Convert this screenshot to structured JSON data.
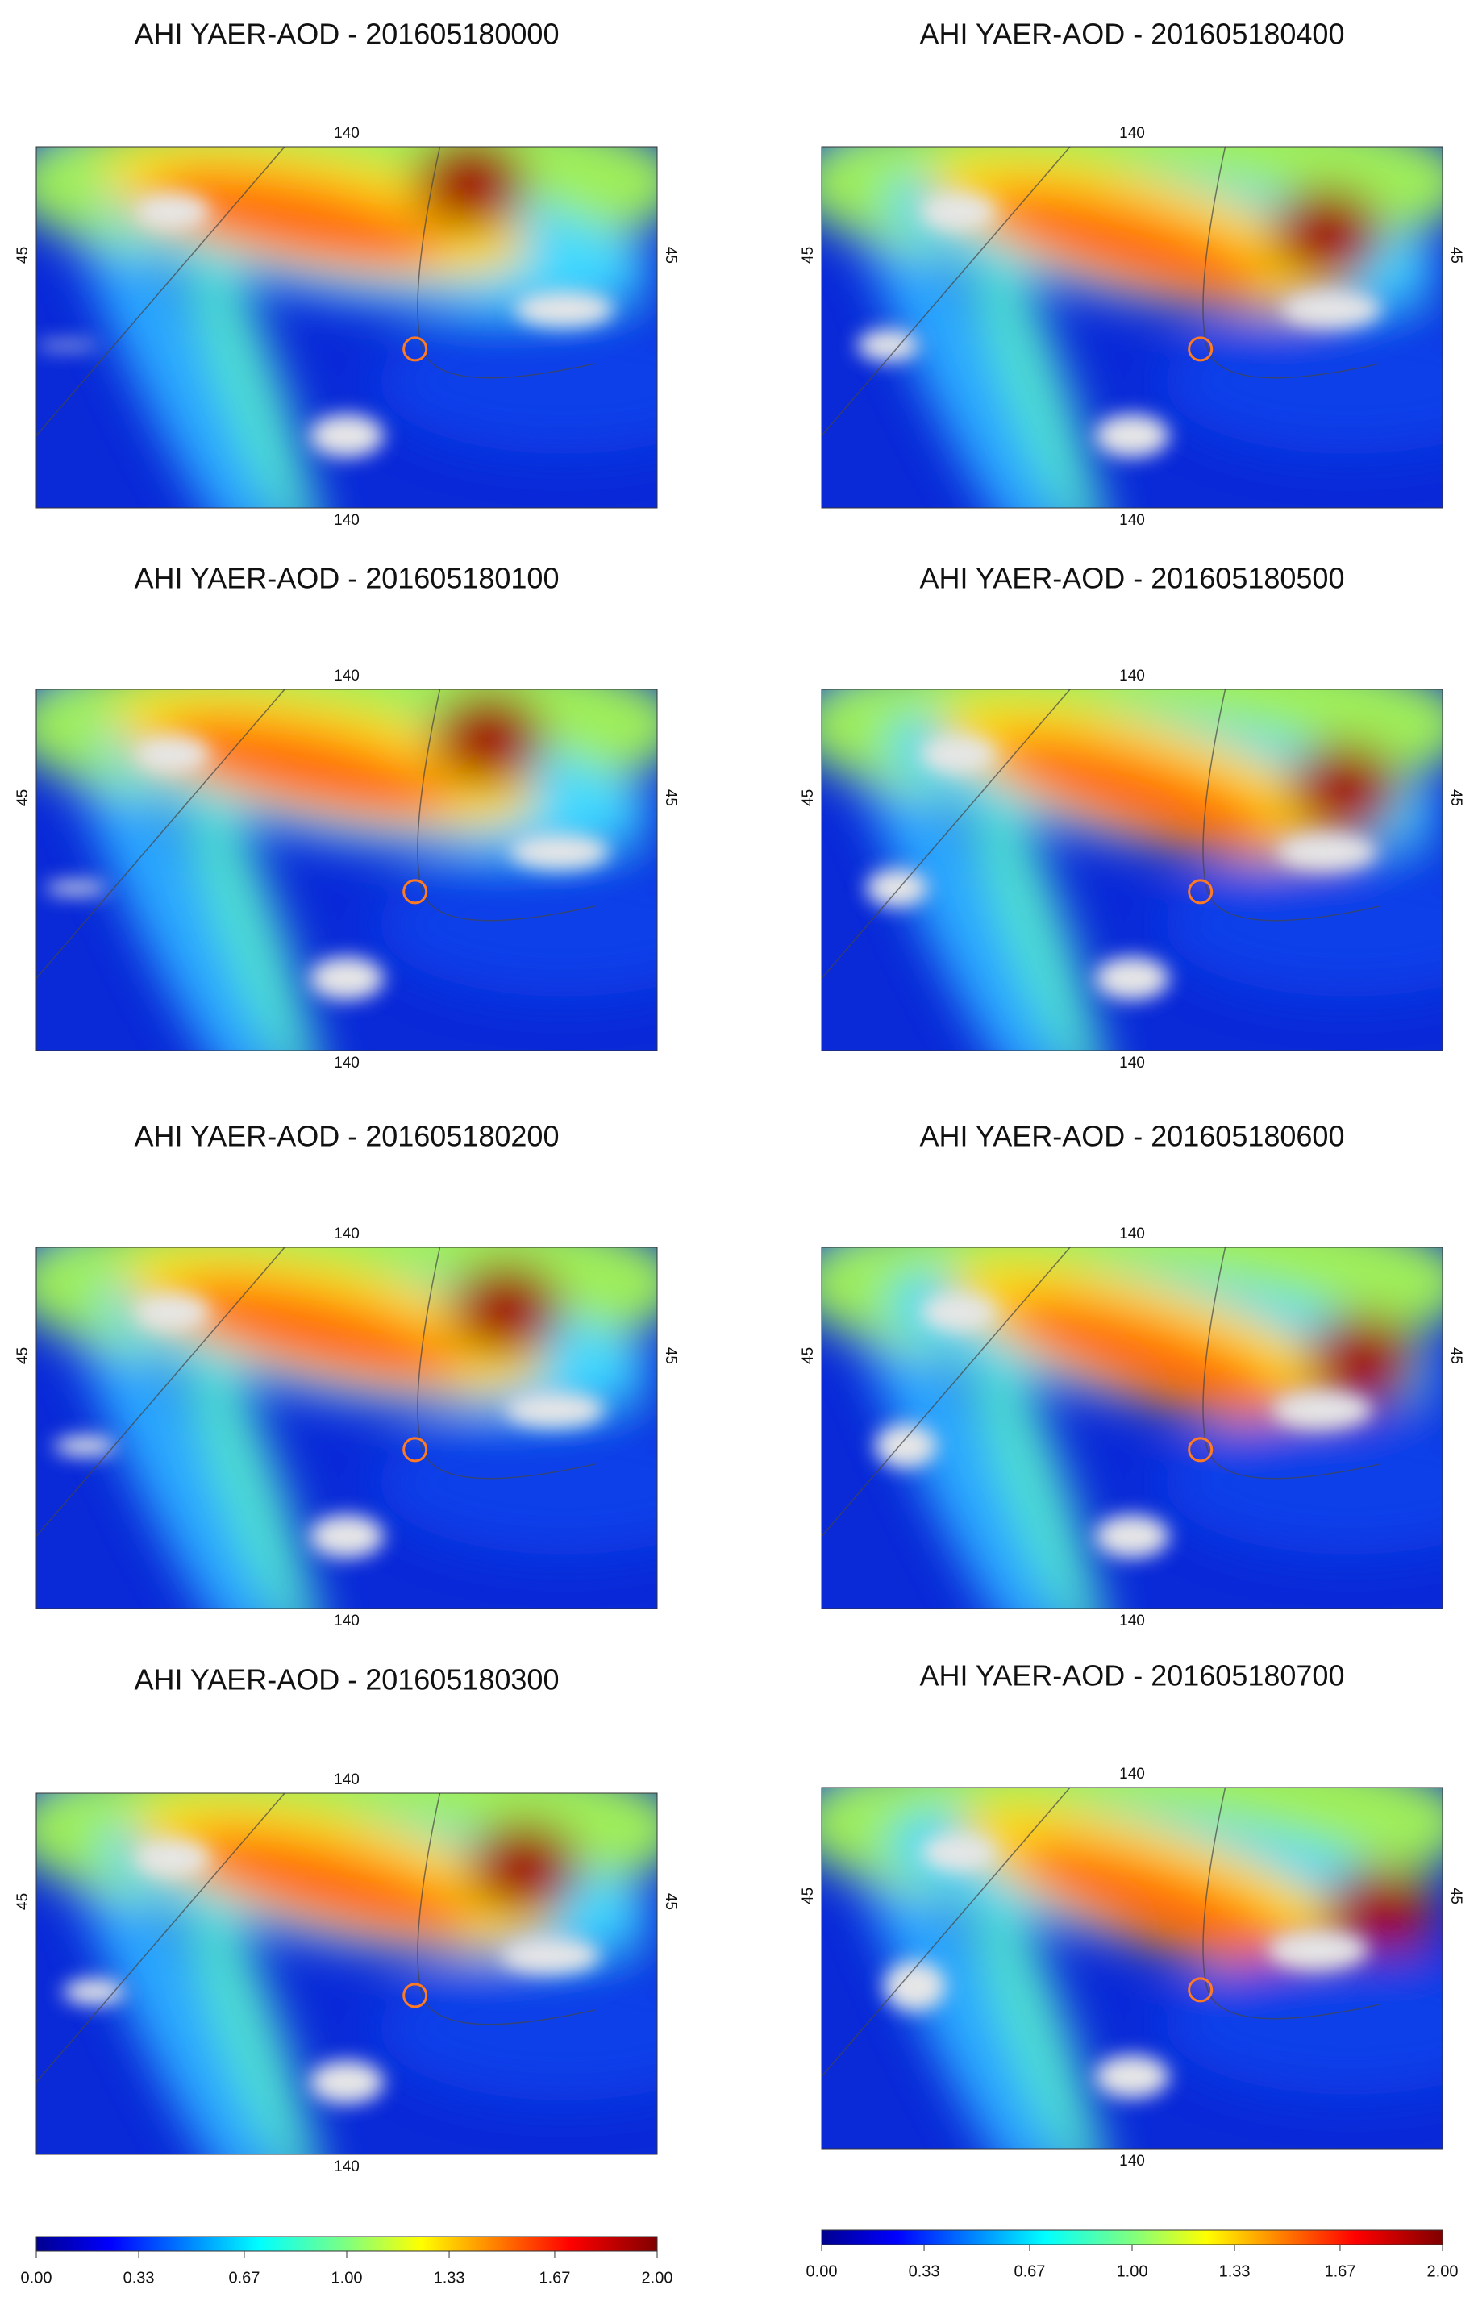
{
  "panels": [
    {
      "title": "AHI YAER-AOD - 201605180000",
      "lon_top": "140",
      "lon_bottom": "140",
      "lat_left": "45",
      "lat_right": "45"
    },
    {
      "title": "AHI YAER-AOD - 201605180100",
      "lon_top": "140",
      "lon_bottom": "140",
      "lat_left": "45",
      "lat_right": "45"
    },
    {
      "title": "AHI YAER-AOD - 201605180200",
      "lon_top": "140",
      "lon_bottom": "140",
      "lat_left": "45",
      "lat_right": "45"
    },
    {
      "title": "AHI YAER-AOD - 201605180300",
      "lon_top": "140",
      "lon_bottom": "140",
      "lat_left": "45",
      "lat_right": "45"
    },
    {
      "title": "AHI YAER-AOD - 201605180400",
      "lon_top": "140",
      "lon_bottom": "140",
      "lat_left": "45",
      "lat_right": "45"
    },
    {
      "title": "AHI YAER-AOD - 201605180500",
      "lon_top": "140",
      "lon_bottom": "140",
      "lat_left": "45",
      "lat_right": "45"
    },
    {
      "title": "AHI YAER-AOD - 201605180600",
      "lon_top": "140",
      "lon_bottom": "140",
      "lat_left": "45",
      "lat_right": "45"
    },
    {
      "title": "AHI YAER-AOD - 201605180700",
      "lon_top": "140",
      "lon_bottom": "140",
      "lat_left": "45",
      "lat_right": "45"
    }
  ],
  "colorbars": [
    {
      "ticks": [
        {
          "value": 0,
          "label": "0.00"
        },
        {
          "value": 0.33,
          "label": "0.33"
        },
        {
          "value": 0.67,
          "label": "0.67"
        },
        {
          "value": 1,
          "label": "1.00"
        },
        {
          "value": 1.33,
          "label": "1.33"
        },
        {
          "value": 1.67,
          "label": "1.67"
        },
        {
          "value": 2,
          "label": "2.00"
        }
      ]
    },
    {
      "ticks": [
        {
          "value": 0,
          "label": "0.00"
        },
        {
          "value": 0.33,
          "label": "0.33"
        },
        {
          "value": 0.67,
          "label": "0.67"
        },
        {
          "value": 1,
          "label": "1.00"
        },
        {
          "value": 1.33,
          "label": "1.33"
        },
        {
          "value": 1.67,
          "label": "1.67"
        },
        {
          "value": 2,
          "label": "2.00"
        }
      ]
    }
  ]
}
